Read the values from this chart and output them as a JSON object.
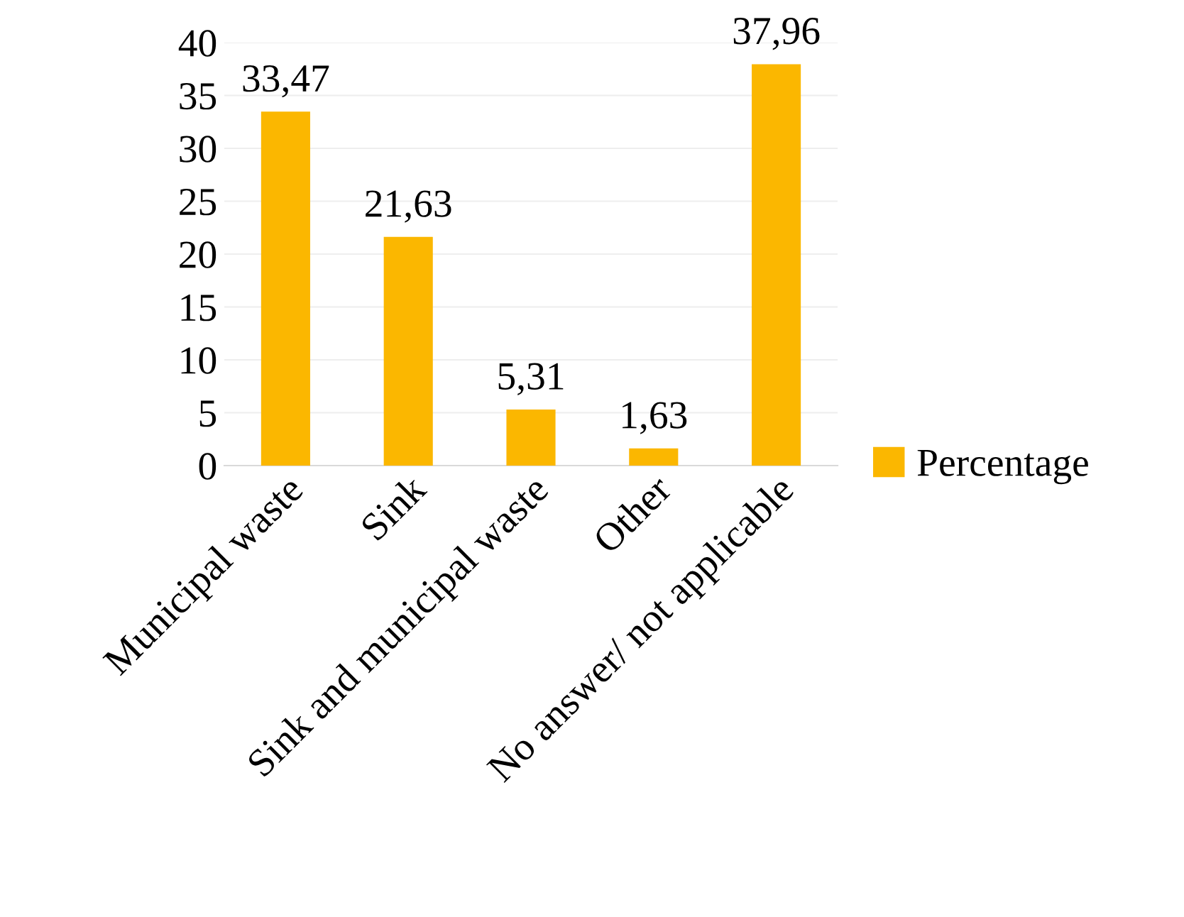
{
  "chart_data": {
    "type": "bar",
    "categories": [
      "Municipal waste",
      "Sink",
      "Sink and municipal waste",
      "Other",
      "No answer/ not applicable"
    ],
    "series": [
      {
        "name": "Percentage",
        "color": "#fbb700",
        "values": [
          33.47,
          21.63,
          5.31,
          1.63,
          37.96
        ],
        "value_labels": [
          "33,47",
          "21,63",
          "5,31",
          "1,63",
          "37,96"
        ]
      }
    ],
    "ylim": [
      0,
      40
    ],
    "yticks": [
      0,
      5,
      10,
      15,
      20,
      25,
      30,
      35,
      40
    ],
    "grid": "y",
    "legend": "right"
  }
}
